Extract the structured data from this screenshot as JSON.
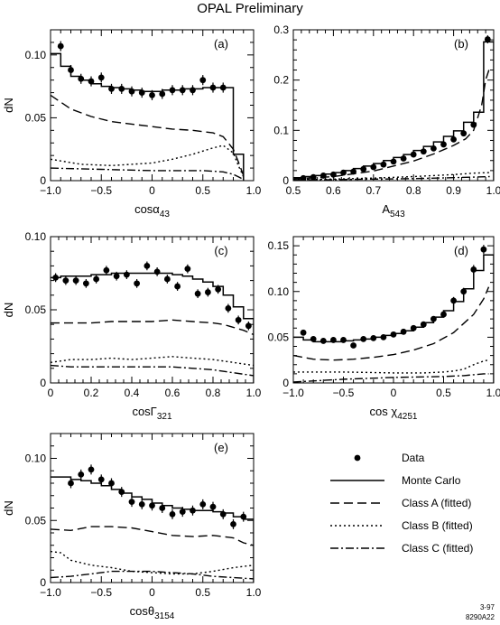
{
  "title": "OPAL Preliminary",
  "footer_code": [
    "3-97",
    "8290A22"
  ],
  "legend": {
    "items": [
      {
        "label": "Data",
        "style": "dot"
      },
      {
        "label": "Monte Carlo",
        "style": "solid"
      },
      {
        "label": "Class A (fitted)",
        "style": "dashed"
      },
      {
        "label": "Class B (fitted)",
        "style": "dotted"
      },
      {
        "label": "Class C (fitted)",
        "style": "dashdot"
      }
    ]
  },
  "chart_data": [
    {
      "id": "a",
      "type": "line",
      "panel_label": "(a)",
      "ylabel": "dN",
      "xlabel": "cosα",
      "xlabel_sub": "43",
      "xlim": [
        -1,
        1
      ],
      "ylim": [
        0,
        0.12
      ],
      "xticks": [
        {
          "v": -1,
          "t": "−1.0"
        },
        {
          "v": -0.5,
          "t": "−0.5"
        },
        {
          "v": 0,
          "t": "0"
        },
        {
          "v": 0.5,
          "t": "0.5"
        },
        {
          "v": 1,
          "t": "1.0"
        }
      ],
      "yticks": [
        {
          "v": 0,
          "t": "0"
        },
        {
          "v": 0.05,
          "t": "0.05"
        },
        {
          "v": 0.1,
          "t": "0.10"
        }
      ],
      "data": {
        "x": [
          -0.9,
          -0.8,
          -0.7,
          -0.6,
          -0.5,
          -0.4,
          -0.3,
          -0.2,
          -0.1,
          0.0,
          0.1,
          0.2,
          0.3,
          0.4,
          0.5,
          0.6,
          0.7
        ],
        "y": [
          0.107,
          0.088,
          0.081,
          0.079,
          0.082,
          0.073,
          0.073,
          0.071,
          0.07,
          0.068,
          0.069,
          0.072,
          0.072,
          0.072,
          0.08,
          0.074,
          0.074
        ],
        "err": [
          0.004,
          0.004,
          0.004,
          0.004,
          0.004,
          0.004,
          0.004,
          0.004,
          0.004,
          0.004,
          0.004,
          0.004,
          0.004,
          0.004,
          0.004,
          0.004,
          0.004
        ]
      },
      "mc": {
        "edges": [
          -1.0,
          -0.9,
          -0.8,
          -0.7,
          -0.6,
          -0.5,
          -0.4,
          -0.3,
          -0.2,
          -0.1,
          0.0,
          0.1,
          0.2,
          0.3,
          0.4,
          0.5,
          0.6,
          0.7,
          0.8,
          0.9
        ],
        "values": [
          0.101,
          0.091,
          0.083,
          0.08,
          0.077,
          0.075,
          0.074,
          0.073,
          0.072,
          0.071,
          0.071,
          0.072,
          0.072,
          0.073,
          0.073,
          0.074,
          0.074,
          0.074,
          0.021
        ]
      },
      "classA": {
        "x": [
          -1,
          -0.8,
          -0.6,
          -0.4,
          -0.2,
          0.0,
          0.2,
          0.4,
          0.6,
          0.7,
          0.8,
          0.85,
          0.9
        ],
        "y": [
          0.068,
          0.057,
          0.051,
          0.047,
          0.045,
          0.043,
          0.041,
          0.04,
          0.038,
          0.035,
          0.025,
          0.015,
          0.004
        ]
      },
      "classB": {
        "x": [
          -1,
          -0.7,
          -0.4,
          -0.2,
          0.0,
          0.2,
          0.4,
          0.6,
          0.7,
          0.8,
          0.85,
          0.9
        ],
        "y": [
          0.017,
          0.013,
          0.012,
          0.013,
          0.014,
          0.017,
          0.021,
          0.026,
          0.028,
          0.022,
          0.012,
          0.003
        ]
      },
      "classC": {
        "x": [
          -1,
          -0.5,
          0.0,
          0.5,
          0.7,
          0.8,
          0.85,
          0.9
        ],
        "y": [
          0.01,
          0.009,
          0.008,
          0.008,
          0.007,
          0.005,
          0.003,
          0.001
        ]
      }
    },
    {
      "id": "b",
      "type": "line",
      "panel_label": "(b)",
      "ylabel": "",
      "xlabel": "A",
      "xlabel_sub": "543",
      "xlim": [
        0.5,
        1.0
      ],
      "ylim": [
        0,
        0.3
      ],
      "xticks": [
        {
          "v": 0.5,
          "t": "0.5"
        },
        {
          "v": 0.6,
          "t": "0.6"
        },
        {
          "v": 0.7,
          "t": "0.7"
        },
        {
          "v": 0.8,
          "t": "0.8"
        },
        {
          "v": 0.9,
          "t": "0.9"
        },
        {
          "v": 1.0,
          "t": "1.0"
        }
      ],
      "yticks": [
        {
          "v": 0,
          "t": "0"
        },
        {
          "v": 0.1,
          "t": "0.1"
        },
        {
          "v": 0.2,
          "t": "0.2"
        },
        {
          "v": 0.3,
          "t": "0.3"
        }
      ],
      "data": {
        "x": [
          0.525,
          0.55,
          0.575,
          0.6,
          0.625,
          0.65,
          0.675,
          0.7,
          0.725,
          0.75,
          0.775,
          0.8,
          0.825,
          0.85,
          0.875,
          0.9,
          0.925,
          0.95,
          0.985
        ],
        "y": [
          0.005,
          0.007,
          0.01,
          0.012,
          0.016,
          0.018,
          0.023,
          0.027,
          0.032,
          0.038,
          0.044,
          0.052,
          0.058,
          0.064,
          0.072,
          0.082,
          0.094,
          0.111,
          0.281
        ],
        "err": [
          0.002,
          0.002,
          0.002,
          0.002,
          0.002,
          0.002,
          0.002,
          0.003,
          0.003,
          0.003,
          0.003,
          0.003,
          0.003,
          0.003,
          0.004,
          0.004,
          0.004,
          0.005,
          0.008
        ]
      },
      "mc": {
        "edges": [
          0.5,
          0.525,
          0.55,
          0.575,
          0.6,
          0.625,
          0.65,
          0.675,
          0.7,
          0.725,
          0.75,
          0.775,
          0.8,
          0.825,
          0.85,
          0.875,
          0.9,
          0.925,
          0.95,
          0.975,
          1.0
        ],
        "values": [
          0.006,
          0.008,
          0.01,
          0.013,
          0.016,
          0.02,
          0.024,
          0.029,
          0.034,
          0.04,
          0.046,
          0.052,
          0.06,
          0.068,
          0.077,
          0.088,
          0.099,
          0.116,
          0.136,
          0.276
        ]
      },
      "classA": {
        "x": [
          0.5,
          0.6,
          0.7,
          0.8,
          0.85,
          0.9,
          0.93,
          0.95,
          0.97,
          0.98,
          0.99
        ],
        "y": [
          0.003,
          0.008,
          0.019,
          0.039,
          0.053,
          0.07,
          0.083,
          0.1,
          0.15,
          0.2,
          0.225
        ]
      },
      "classB": {
        "x": [
          0.5,
          0.6,
          0.7,
          0.8,
          0.9,
          0.95,
          0.99
        ],
        "y": [
          0.002,
          0.003,
          0.005,
          0.008,
          0.012,
          0.015,
          0.016
        ]
      },
      "classC": {
        "x": [
          0.5,
          0.6,
          0.7,
          0.8,
          0.9,
          0.95,
          0.99
        ],
        "y": [
          0.001,
          0.002,
          0.003,
          0.004,
          0.006,
          0.007,
          0.008
        ]
      }
    },
    {
      "id": "c",
      "type": "line",
      "panel_label": "(c)",
      "ylabel": "dN",
      "xlabel": "cosΓ",
      "xlabel_sub": "321",
      "xlim": [
        0,
        1
      ],
      "ylim": [
        0,
        0.1
      ],
      "xticks": [
        {
          "v": 0,
          "t": "0"
        },
        {
          "v": 0.2,
          "t": "0.2"
        },
        {
          "v": 0.4,
          "t": "0.4"
        },
        {
          "v": 0.6,
          "t": "0.6"
        },
        {
          "v": 0.8,
          "t": "0.8"
        },
        {
          "v": 1.0,
          "t": "1.0"
        }
      ],
      "yticks": [
        {
          "v": 0,
          "t": "0"
        },
        {
          "v": 0.05,
          "t": "0.05"
        },
        {
          "v": 0.1,
          "t": "0.10"
        }
      ],
      "data": {
        "x": [
          0.025,
          0.075,
          0.125,
          0.175,
          0.225,
          0.275,
          0.325,
          0.375,
          0.425,
          0.475,
          0.525,
          0.575,
          0.625,
          0.675,
          0.725,
          0.775,
          0.825,
          0.875,
          0.925,
          0.975
        ],
        "y": [
          0.072,
          0.07,
          0.07,
          0.068,
          0.071,
          0.077,
          0.073,
          0.074,
          0.068,
          0.08,
          0.076,
          0.071,
          0.066,
          0.078,
          0.061,
          0.062,
          0.064,
          0.051,
          0.043,
          0.039
        ],
        "err": [
          0.003,
          0.003,
          0.003,
          0.003,
          0.003,
          0.003,
          0.003,
          0.003,
          0.003,
          0.003,
          0.003,
          0.003,
          0.003,
          0.003,
          0.003,
          0.003,
          0.003,
          0.003,
          0.003,
          0.003
        ]
      },
      "mc": {
        "edges": [
          0.0,
          0.05,
          0.1,
          0.15,
          0.2,
          0.25,
          0.3,
          0.35,
          0.4,
          0.45,
          0.5,
          0.55,
          0.6,
          0.65,
          0.7,
          0.75,
          0.8,
          0.85,
          0.9,
          0.95,
          1.0
        ],
        "values": [
          0.072,
          0.073,
          0.073,
          0.073,
          0.074,
          0.074,
          0.075,
          0.075,
          0.075,
          0.075,
          0.075,
          0.075,
          0.074,
          0.073,
          0.071,
          0.069,
          0.066,
          0.06,
          0.052,
          0.044
        ]
      },
      "classA": {
        "x": [
          0,
          0.1,
          0.2,
          0.3,
          0.4,
          0.5,
          0.6,
          0.7,
          0.8,
          0.85,
          0.9,
          0.95,
          1.0
        ],
        "y": [
          0.041,
          0.041,
          0.041,
          0.042,
          0.042,
          0.042,
          0.043,
          0.042,
          0.041,
          0.04,
          0.038,
          0.036,
          0.033
        ]
      },
      "classB": {
        "x": [
          0,
          0.1,
          0.2,
          0.3,
          0.4,
          0.5,
          0.6,
          0.7,
          0.8,
          0.9,
          1.0
        ],
        "y": [
          0.014,
          0.016,
          0.016,
          0.017,
          0.016,
          0.017,
          0.018,
          0.017,
          0.016,
          0.014,
          0.012
        ]
      },
      "classC": {
        "x": [
          0,
          0.1,
          0.2,
          0.3,
          0.4,
          0.5,
          0.6,
          0.7,
          0.8,
          0.9,
          1.0
        ],
        "y": [
          0.012,
          0.011,
          0.011,
          0.011,
          0.011,
          0.011,
          0.011,
          0.01,
          0.009,
          0.007,
          0.005
        ]
      }
    },
    {
      "id": "d",
      "type": "line",
      "panel_label": "(d)",
      "ylabel": "",
      "xlabel": "cos χ",
      "xlabel_sub": "4251",
      "xlim": [
        -1,
        1
      ],
      "ylim": [
        0,
        0.16
      ],
      "xticks": [
        {
          "v": -1,
          "t": "−1.0"
        },
        {
          "v": -0.5,
          "t": "−0.5"
        },
        {
          "v": 0,
          "t": "0"
        },
        {
          "v": 0.5,
          "t": "0.5"
        },
        {
          "v": 1,
          "t": "1.0"
        }
      ],
      "yticks": [
        {
          "v": 0,
          "t": "0"
        },
        {
          "v": 0.05,
          "t": "0.05"
        },
        {
          "v": 0.1,
          "t": "0.10"
        },
        {
          "v": 0.15,
          "t": "0.15"
        }
      ],
      "data": {
        "x": [
          -0.9,
          -0.8,
          -0.7,
          -0.6,
          -0.5,
          -0.4,
          -0.3,
          -0.2,
          -0.1,
          0.0,
          0.1,
          0.2,
          0.3,
          0.4,
          0.5,
          0.6,
          0.7,
          0.8,
          0.9
        ],
        "y": [
          0.055,
          0.048,
          0.046,
          0.047,
          0.047,
          0.041,
          0.048,
          0.049,
          0.05,
          0.053,
          0.056,
          0.06,
          0.064,
          0.07,
          0.075,
          0.09,
          0.1,
          0.124,
          0.146
        ],
        "err": [
          0.003,
          0.003,
          0.003,
          0.003,
          0.003,
          0.003,
          0.003,
          0.003,
          0.003,
          0.003,
          0.003,
          0.003,
          0.003,
          0.003,
          0.003,
          0.004,
          0.004,
          0.005,
          0.005
        ]
      },
      "mc": {
        "edges": [
          -1.0,
          -0.9,
          -0.8,
          -0.7,
          -0.6,
          -0.5,
          -0.4,
          -0.3,
          -0.2,
          -0.1,
          0.0,
          0.1,
          0.2,
          0.3,
          0.4,
          0.5,
          0.6,
          0.7,
          0.8,
          0.9,
          1.0
        ],
        "values": [
          0.05,
          0.047,
          0.045,
          0.045,
          0.045,
          0.046,
          0.047,
          0.048,
          0.05,
          0.052,
          0.054,
          0.057,
          0.061,
          0.066,
          0.072,
          0.079,
          0.089,
          0.103,
          0.123,
          0.14
        ]
      },
      "classA": {
        "x": [
          -1,
          -0.8,
          -0.6,
          -0.4,
          -0.2,
          0.0,
          0.2,
          0.4,
          0.6,
          0.8,
          0.9,
          0.95
        ],
        "y": [
          0.03,
          0.026,
          0.025,
          0.026,
          0.028,
          0.031,
          0.036,
          0.043,
          0.055,
          0.075,
          0.092,
          0.105
        ]
      },
      "classB": {
        "x": [
          -1,
          -0.5,
          0.0,
          0.3,
          0.5,
          0.6,
          0.7,
          0.8,
          0.9,
          0.95
        ],
        "y": [
          0.012,
          0.012,
          0.011,
          0.011,
          0.012,
          0.013,
          0.015,
          0.02,
          0.024,
          0.025
        ]
      },
      "classC": {
        "x": [
          -1,
          -0.5,
          0.0,
          0.5,
          0.7,
          0.8,
          0.9,
          0.95
        ],
        "y": [
          0.001,
          0.004,
          0.006,
          0.007,
          0.008,
          0.009,
          0.01,
          0.01
        ]
      }
    },
    {
      "id": "e",
      "type": "line",
      "panel_label": "(e)",
      "ylabel": "dN",
      "xlabel": "cosθ",
      "xlabel_sub": "3154",
      "xlim": [
        -1,
        1
      ],
      "ylim": [
        0,
        0.12
      ],
      "xticks": [
        {
          "v": -1,
          "t": "−1.0"
        },
        {
          "v": -0.5,
          "t": "−0.5"
        },
        {
          "v": 0,
          "t": "0"
        },
        {
          "v": 0.5,
          "t": "0.5"
        },
        {
          "v": 1,
          "t": "1.0"
        }
      ],
      "yticks": [
        {
          "v": 0,
          "t": "0"
        },
        {
          "v": 0.05,
          "t": "0.05"
        },
        {
          "v": 0.1,
          "t": "0.10"
        }
      ],
      "data": {
        "x": [
          -0.8,
          -0.7,
          -0.6,
          -0.5,
          -0.4,
          -0.3,
          -0.2,
          -0.1,
          0.0,
          0.1,
          0.2,
          0.3,
          0.4,
          0.5,
          0.6,
          0.7,
          0.8,
          0.9
        ],
        "y": [
          0.08,
          0.087,
          0.091,
          0.083,
          0.08,
          0.073,
          0.065,
          0.063,
          0.062,
          0.06,
          0.055,
          0.057,
          0.058,
          0.063,
          0.061,
          0.055,
          0.047,
          0.053
        ],
        "err": [
          0.004,
          0.004,
          0.004,
          0.004,
          0.004,
          0.004,
          0.004,
          0.004,
          0.004,
          0.004,
          0.004,
          0.004,
          0.004,
          0.004,
          0.004,
          0.004,
          0.004,
          0.004
        ]
      },
      "mc": {
        "edges": [
          -1.0,
          -0.9,
          -0.8,
          -0.7,
          -0.6,
          -0.5,
          -0.4,
          -0.3,
          -0.2,
          -0.1,
          0.0,
          0.1,
          0.2,
          0.3,
          0.4,
          0.5,
          0.6,
          0.7,
          0.8,
          0.9,
          1.0
        ],
        "values": [
          0.085,
          0.085,
          0.083,
          0.082,
          0.08,
          0.078,
          0.075,
          0.072,
          0.069,
          0.067,
          0.064,
          0.062,
          0.06,
          0.059,
          0.058,
          0.058,
          0.057,
          0.056,
          0.053,
          0.051
        ]
      },
      "classA": {
        "x": [
          -1,
          -0.8,
          -0.6,
          -0.4,
          -0.2,
          0.0,
          0.2,
          0.4,
          0.6,
          0.8,
          0.9,
          1.0
        ],
        "y": [
          0.043,
          0.042,
          0.045,
          0.045,
          0.044,
          0.041,
          0.038,
          0.037,
          0.038,
          0.036,
          0.032,
          0.03
        ]
      },
      "classB": {
        "x": [
          -1,
          -0.9,
          -0.8,
          -0.6,
          -0.4,
          -0.2,
          0.0,
          0.2,
          0.4,
          0.6,
          0.8,
          1.0
        ],
        "y": [
          0.025,
          0.024,
          0.018,
          0.014,
          0.012,
          0.009,
          0.008,
          0.007,
          0.007,
          0.009,
          0.012,
          0.014
        ]
      },
      "classC": {
        "x": [
          -1,
          -0.8,
          -0.6,
          -0.4,
          -0.2,
          0.0,
          0.2,
          0.4,
          0.6,
          0.8,
          1.0
        ],
        "y": [
          0.004,
          0.005,
          0.007,
          0.009,
          0.009,
          0.009,
          0.008,
          0.007,
          0.005,
          0.004,
          0.003
        ]
      }
    }
  ]
}
